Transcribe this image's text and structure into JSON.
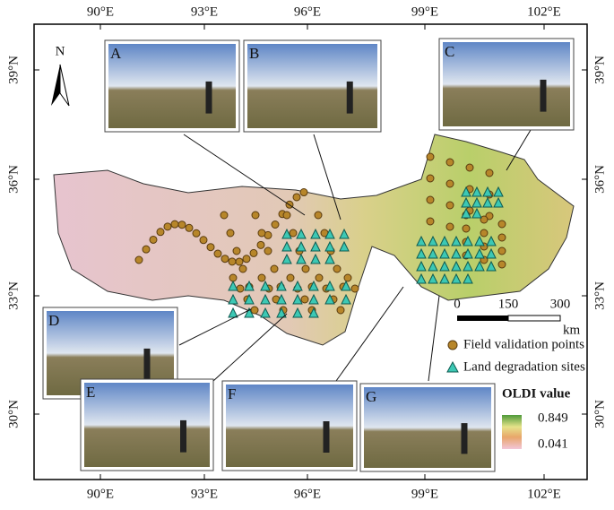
{
  "map": {
    "lon_labels": [
      "90°E",
      "93°E",
      "96°E",
      "99°E",
      "102°E"
    ],
    "lat_labels": [
      "39°N",
      "36°N",
      "33°N",
      "30°N"
    ],
    "north": "N",
    "photos": [
      "A",
      "B",
      "C",
      "D",
      "E",
      "F",
      "G"
    ],
    "scale": {
      "ticks": [
        0,
        150,
        300
      ],
      "unit": "km"
    },
    "legend": [
      "Field validation points",
      "Land degradation sites"
    ],
    "colorbar": {
      "title": "OLDI value",
      "max": 0.849,
      "min": 0.041
    }
  }
}
